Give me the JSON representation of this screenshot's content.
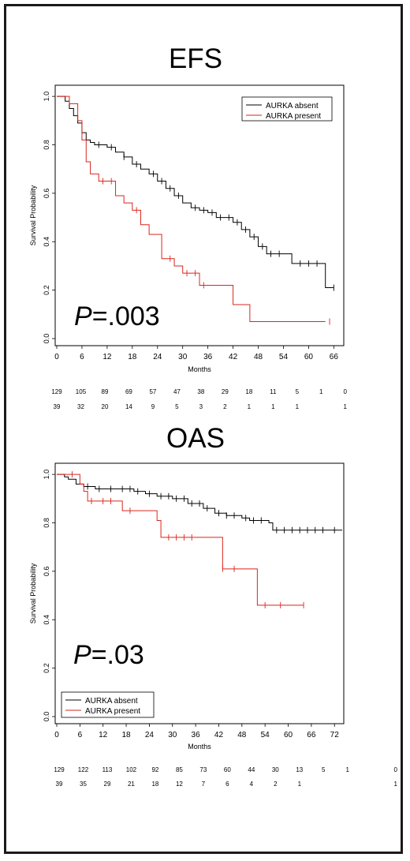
{
  "chart_data": [
    {
      "id": "efs",
      "type": "line",
      "title": "EFS",
      "xlabel": "Months",
      "ylabel": "Survival Probability",
      "xlim": [
        0,
        68
      ],
      "ylim": [
        0,
        1.02
      ],
      "xticks": [
        "0",
        "6",
        "12",
        "18",
        "24",
        "30",
        "36",
        "42",
        "48",
        "54",
        "60",
        "66"
      ],
      "yticks": [
        "0.0",
        "0.2",
        "0.4",
        "0.6",
        "0.8",
        "1.0"
      ],
      "annotation": {
        "italic": "P",
        "rest": "=.003"
      },
      "legend_position": "top-right",
      "series": [
        {
          "name": "AURKA absent",
          "color": "#000000",
          "points": [
            [
              0,
              1.0
            ],
            [
              2,
              0.98
            ],
            [
              3,
              0.95
            ],
            [
              4,
              0.92
            ],
            [
              5,
              0.89
            ],
            [
              6,
              0.85
            ],
            [
              7,
              0.82
            ],
            [
              8,
              0.81
            ],
            [
              9,
              0.8
            ],
            [
              12,
              0.79
            ],
            [
              14,
              0.77
            ],
            [
              16,
              0.75
            ],
            [
              18,
              0.72
            ],
            [
              20,
              0.7
            ],
            [
              22,
              0.68
            ],
            [
              24,
              0.65
            ],
            [
              26,
              0.62
            ],
            [
              28,
              0.59
            ],
            [
              30,
              0.56
            ],
            [
              32,
              0.54
            ],
            [
              34,
              0.53
            ],
            [
              36,
              0.52
            ],
            [
              38,
              0.5
            ],
            [
              42,
              0.48
            ],
            [
              44,
              0.45
            ],
            [
              46,
              0.42
            ],
            [
              48,
              0.38
            ],
            [
              50,
              0.35
            ],
            [
              54,
              0.35
            ],
            [
              56,
              0.31
            ],
            [
              62,
              0.31
            ],
            [
              64,
              0.21
            ],
            [
              66,
              0.21
            ]
          ],
          "censor_x": [
            10,
            13,
            16,
            19,
            23,
            25,
            27,
            29,
            33,
            35,
            37,
            39,
            41,
            43,
            45,
            47,
            49,
            51,
            53,
            58,
            60,
            62,
            66
          ]
        },
        {
          "name": "AURKA present",
          "color": "#d9261c",
          "points": [
            [
              0,
              1.0
            ],
            [
              3,
              0.97
            ],
            [
              5,
              0.9
            ],
            [
              6,
              0.82
            ],
            [
              7,
              0.73
            ],
            [
              8,
              0.68
            ],
            [
              10,
              0.65
            ],
            [
              14,
              0.59
            ],
            [
              16,
              0.56
            ],
            [
              18,
              0.53
            ],
            [
              20,
              0.47
            ],
            [
              22,
              0.43
            ],
            [
              25,
              0.33
            ],
            [
              28,
              0.3
            ],
            [
              30,
              0.27
            ],
            [
              34,
              0.22
            ],
            [
              40,
              0.22
            ],
            [
              42,
              0.14
            ],
            [
              46,
              0.14
            ],
            [
              46,
              0.07
            ],
            [
              64,
              0.07
            ]
          ],
          "censor_x": [
            11,
            13,
            19,
            27,
            31,
            33,
            35,
            65
          ]
        }
      ],
      "risk_table": {
        "x": [
          0,
          6,
          12,
          18,
          24,
          30,
          36,
          42,
          48,
          54,
          60,
          66,
          72
        ],
        "rows": [
          [
            "129",
            "105",
            "89",
            "69",
            "57",
            "47",
            "38",
            "29",
            "18",
            "11",
            "5",
            "1",
            "0"
          ],
          [
            "39",
            "32",
            "20",
            "14",
            "9",
            "5",
            "3",
            "2",
            "1",
            "1",
            "1",
            "",
            "1"
          ]
        ]
      }
    },
    {
      "id": "oas",
      "type": "line",
      "title": "OAS",
      "xlabel": "Months",
      "ylabel": "Survival Probability",
      "xlim": [
        0,
        74
      ],
      "ylim": [
        0,
        1.02
      ],
      "xticks": [
        "0",
        "6",
        "12",
        "18",
        "24",
        "30",
        "36",
        "42",
        "48",
        "54",
        "60",
        "66",
        "72"
      ],
      "yticks": [
        "0.0",
        "0.2",
        "0.4",
        "0.6",
        "0.8",
        "1.0"
      ],
      "annotation": {
        "italic": "P",
        "rest": "=.03"
      },
      "legend_position": "bottom-left",
      "series": [
        {
          "name": "AURKA absent",
          "color": "#000000",
          "points": [
            [
              0,
              1.0
            ],
            [
              2,
              0.99
            ],
            [
              3,
              0.98
            ],
            [
              5,
              0.96
            ],
            [
              7,
              0.95
            ],
            [
              10,
              0.94
            ],
            [
              20,
              0.93
            ],
            [
              23,
              0.92
            ],
            [
              26,
              0.91
            ],
            [
              30,
              0.9
            ],
            [
              34,
              0.88
            ],
            [
              38,
              0.86
            ],
            [
              41,
              0.84
            ],
            [
              44,
              0.83
            ],
            [
              48,
              0.82
            ],
            [
              50,
              0.81
            ],
            [
              55,
              0.8
            ],
            [
              56,
              0.77
            ],
            [
              74,
              0.77
            ]
          ],
          "censor_x": [
            8,
            11,
            14,
            17,
            19,
            21,
            24,
            27,
            29,
            31,
            33,
            35,
            37,
            39,
            42,
            44,
            46,
            49,
            51,
            53,
            57,
            59,
            61,
            63,
            65,
            67,
            69,
            72
          ]
        },
        {
          "name": "AURKA present",
          "color": "#d9261c",
          "points": [
            [
              0,
              1.0
            ],
            [
              4,
              1.0
            ],
            [
              6,
              0.96
            ],
            [
              7,
              0.93
            ],
            [
              8,
              0.89
            ],
            [
              16,
              0.89
            ],
            [
              17,
              0.85
            ],
            [
              25,
              0.85
            ],
            [
              26,
              0.81
            ],
            [
              27,
              0.74
            ],
            [
              42,
              0.74
            ],
            [
              43,
              0.61
            ],
            [
              51,
              0.61
            ],
            [
              52,
              0.46
            ],
            [
              64,
              0.46
            ]
          ],
          "censor_x": [
            4,
            9,
            12,
            14,
            19,
            29,
            31,
            33,
            35,
            43,
            46,
            54,
            58,
            64
          ]
        }
      ],
      "risk_table": {
        "x": [
          0,
          6,
          12,
          18,
          24,
          30,
          36,
          42,
          48,
          54,
          60,
          66,
          72,
          84
        ],
        "rows": [
          [
            "129",
            "122",
            "113",
            "102",
            "92",
            "85",
            "73",
            "60",
            "44",
            "30",
            "13",
            "5",
            "1",
            "0"
          ],
          [
            "39",
            "35",
            "29",
            "21",
            "18",
            "12",
            "7",
            "6",
            "4",
            "2",
            "1",
            "",
            "",
            "1"
          ]
        ]
      }
    }
  ]
}
